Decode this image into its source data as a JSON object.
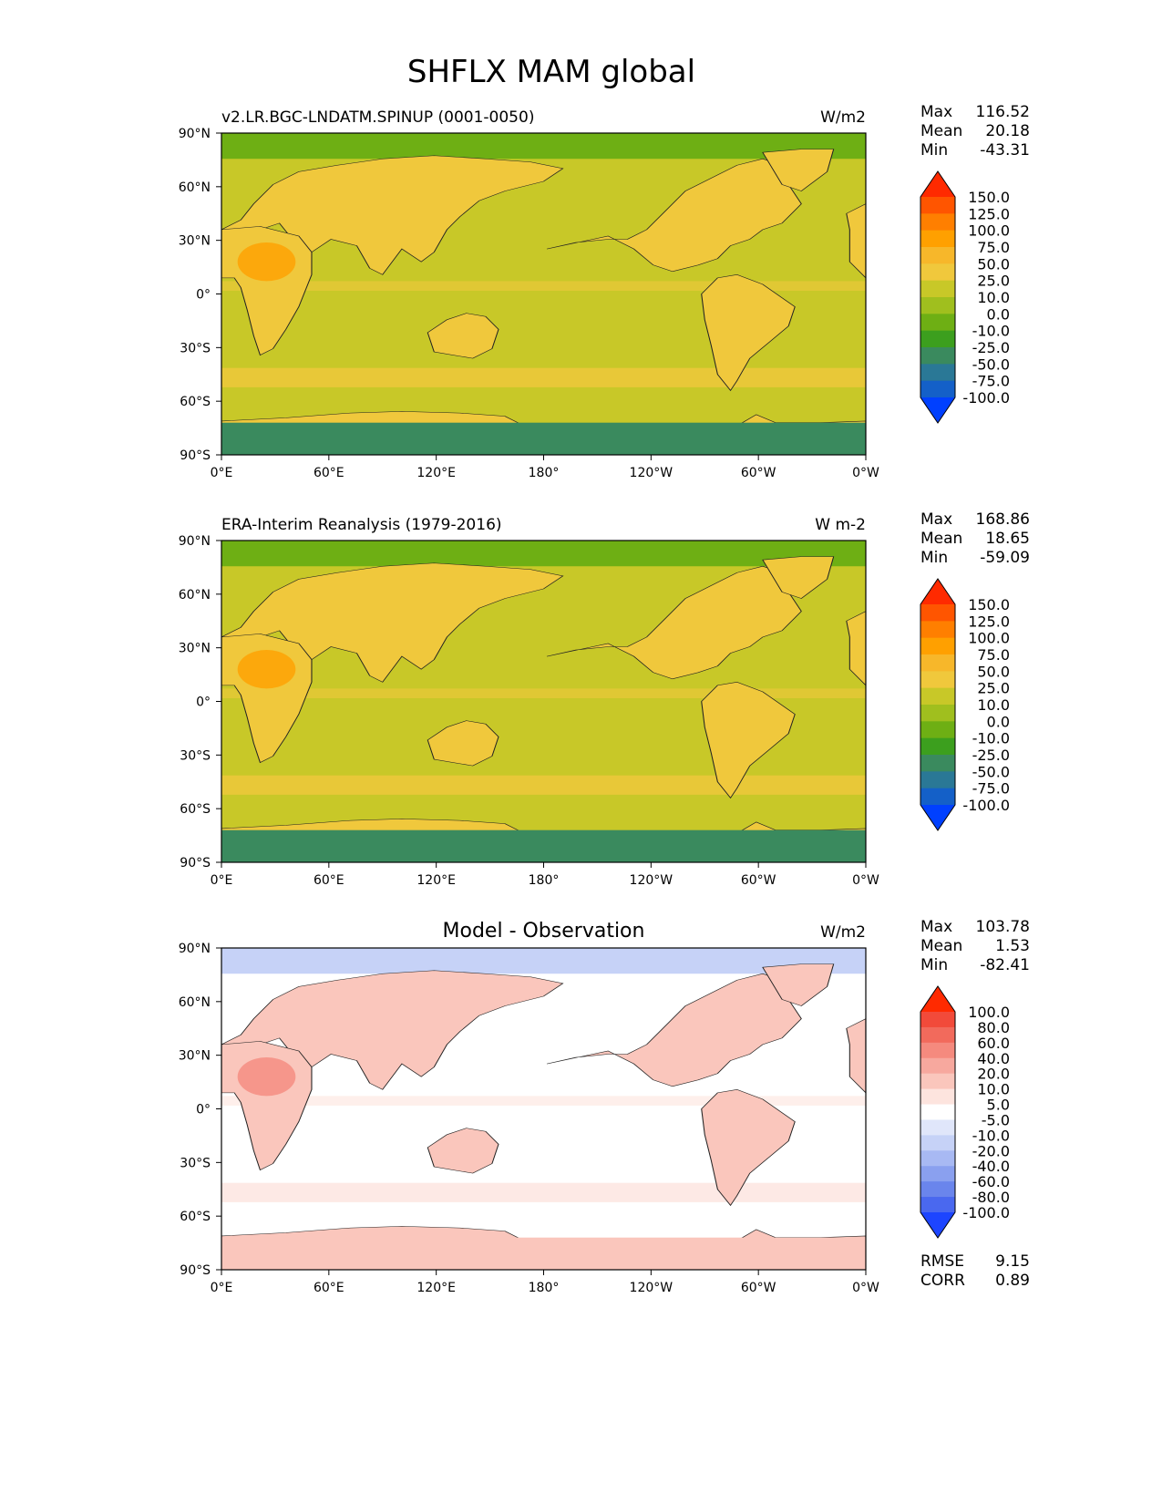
{
  "title": "SHFLX MAM global",
  "axes": {
    "lat_ticks": [
      "90°N",
      "60°N",
      "30°N",
      "0°",
      "30°S",
      "60°S",
      "90°S"
    ],
    "lon_ticks": [
      "0°E",
      "60°E",
      "120°E",
      "180°",
      "120°W",
      "60°W",
      "0°W"
    ]
  },
  "panels": [
    {
      "id": "model",
      "title_left": "v2.LR.BGC-LNDATM.SPINUP (0001-0050)",
      "title_center": "",
      "units": "W/m2",
      "stats": [
        {
          "label": "Max",
          "value": "116.52"
        },
        {
          "label": "Mean",
          "value": "20.18"
        },
        {
          "label": "Min",
          "value": "-43.31"
        }
      ],
      "colorbar": {
        "levels": [
          "150.0",
          "125.0",
          "100.0",
          "75.0",
          "50.0",
          "25.0",
          "10.0",
          "0.0",
          "-10.0",
          "-25.0",
          "-50.0",
          "-75.0",
          "-100.0"
        ],
        "colors": [
          "#ff2a00",
          "#ff5500",
          "#ff7f00",
          "#ffa000",
          "#f7b72a",
          "#f0c83c",
          "#c8c828",
          "#a0bf1e",
          "#6eaf14",
          "#3c9f1e",
          "#3a8a5e",
          "#2a7896",
          "#1460c8",
          "#0040ff"
        ]
      },
      "errors": []
    },
    {
      "id": "obs",
      "title_left": "ERA-Interim Reanalysis (1979-2016)",
      "title_center": "",
      "units": "W m-2",
      "stats": [
        {
          "label": "Max",
          "value": "168.86"
        },
        {
          "label": "Mean",
          "value": "18.65"
        },
        {
          "label": "Min",
          "value": "-59.09"
        }
      ],
      "colorbar": {
        "levels": [
          "150.0",
          "125.0",
          "100.0",
          "75.0",
          "50.0",
          "25.0",
          "10.0",
          "0.0",
          "-10.0",
          "-25.0",
          "-50.0",
          "-75.0",
          "-100.0"
        ],
        "colors": [
          "#ff2a00",
          "#ff5500",
          "#ff7f00",
          "#ffa000",
          "#f7b72a",
          "#f0c83c",
          "#c8c828",
          "#a0bf1e",
          "#6eaf14",
          "#3c9f1e",
          "#3a8a5e",
          "#2a7896",
          "#1460c8",
          "#0040ff"
        ]
      },
      "errors": []
    },
    {
      "id": "diff",
      "title_left": "",
      "title_center": "Model - Observation",
      "units": "W/m2",
      "stats": [
        {
          "label": "Max",
          "value": "103.78"
        },
        {
          "label": "Mean",
          "value": "1.53"
        },
        {
          "label": "Min",
          "value": "-82.41"
        }
      ],
      "colorbar": {
        "levels": [
          "100.0",
          "80.0",
          "60.0",
          "40.0",
          "20.0",
          "10.0",
          "5.0",
          "-5.0",
          "-10.0",
          "-20.0",
          "-40.0",
          "-60.0",
          "-80.0",
          "-100.0"
        ],
        "colors": [
          "#ff2a00",
          "#f24a3a",
          "#f26a5c",
          "#f58a7e",
          "#f7a89e",
          "#fac6bc",
          "#fde4de",
          "#ffffff",
          "#e0e6fa",
          "#c6d2f7",
          "#a8b9f3",
          "#8aa0ef",
          "#6a85ec",
          "#4a68ef",
          "#1d45ff"
        ]
      },
      "errors": [
        {
          "label": "RMSE",
          "value": "9.15"
        },
        {
          "label": "CORR",
          "value": "0.89"
        }
      ]
    }
  ]
}
